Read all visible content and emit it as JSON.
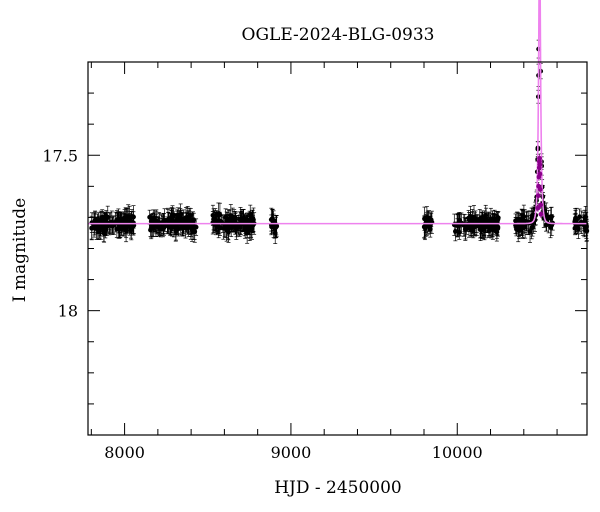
{
  "chart_data": {
    "type": "scatter",
    "title": "OGLE-2024-BLG-0933",
    "xlabel": "HJD - 2450000",
    "ylabel": "I magnitude",
    "xlim": [
      7780,
      10780
    ],
    "ylim": [
      18.4,
      17.2
    ],
    "y_inverted": true,
    "x_ticks": [
      8000,
      9000,
      10000
    ],
    "x_tick_labels": [
      "8000",
      "9000",
      "10000"
    ],
    "y_ticks": [
      17.5,
      18
    ],
    "y_tick_labels": [
      "17.5",
      "18"
    ],
    "x_minor_step": 200,
    "y_minor_step": 0.1,
    "baseline_mag": 17.72,
    "colors": {
      "points": "#000000",
      "fit_curve": "#ee82ee",
      "highlight_points": "#8b008b"
    },
    "model": {
      "type": "paczynski",
      "t0": 10495,
      "u0": 0.45,
      "tE": 10,
      "baseline_mag": 17.72
    },
    "observing_seasons": [
      {
        "start": 7800,
        "end": 8060,
        "n_points": 110
      },
      {
        "start": 8150,
        "end": 8430,
        "n_points": 120
      },
      {
        "start": 8530,
        "end": 8780,
        "n_points": 110
      },
      {
        "start": 8880,
        "end": 8920,
        "n_points": 14
      },
      {
        "start": 9800,
        "end": 9850,
        "n_points": 18
      },
      {
        "start": 9980,
        "end": 10250,
        "n_points": 100
      },
      {
        "start": 10350,
        "end": 10580,
        "n_points": 80
      },
      {
        "start": 10700,
        "end": 10780,
        "n_points": 25
      }
    ],
    "highlighted_points": [
      {
        "x": 10485,
        "y": 17.67
      },
      {
        "x": 10487,
        "y": 17.63
      },
      {
        "x": 10489,
        "y": 17.6
      },
      {
        "x": 10491,
        "y": 17.57
      },
      {
        "x": 10493,
        "y": 17.54
      },
      {
        "x": 10494,
        "y": 17.52
      },
      {
        "x": 10495,
        "y": 17.51
      },
      {
        "x": 10496,
        "y": 17.53
      },
      {
        "x": 10497,
        "y": 17.56
      },
      {
        "x": 10499,
        "y": 17.61
      },
      {
        "x": 10501,
        "y": 17.66
      },
      {
        "x": 10503,
        "y": 17.69
      }
    ]
  }
}
